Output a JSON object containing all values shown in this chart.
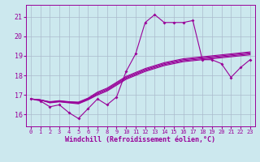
{
  "xlabel": "Windchill (Refroidissement éolien,°C)",
  "background_color": "#cce8ee",
  "grid_color": "#aabbcc",
  "line_color": "#990099",
  "x_ticks": [
    0,
    1,
    2,
    3,
    4,
    5,
    6,
    7,
    8,
    9,
    10,
    11,
    12,
    13,
    14,
    15,
    16,
    17,
    18,
    19,
    20,
    21,
    22,
    23
  ],
  "y_ticks": [
    16,
    17,
    18,
    19,
    20,
    21
  ],
  "ylim": [
    15.4,
    21.6
  ],
  "xlim": [
    -0.5,
    23.5
  ],
  "series_main": [
    16.8,
    16.7,
    16.4,
    16.5,
    16.1,
    15.8,
    16.3,
    16.8,
    16.5,
    16.9,
    18.2,
    19.1,
    20.7,
    21.1,
    20.7,
    20.7,
    20.7,
    20.8,
    18.8,
    18.8,
    18.6,
    17.9,
    18.4,
    18.8
  ],
  "series_parallel": [
    [
      16.8,
      16.75,
      16.6,
      16.65,
      16.6,
      16.55,
      16.75,
      17.0,
      17.2,
      17.5,
      17.8,
      18.0,
      18.2,
      18.35,
      18.5,
      18.6,
      18.7,
      18.75,
      18.8,
      18.85,
      18.9,
      18.95,
      19.0,
      19.05
    ],
    [
      16.8,
      16.75,
      16.62,
      16.67,
      16.62,
      16.58,
      16.78,
      17.05,
      17.25,
      17.55,
      17.85,
      18.05,
      18.25,
      18.4,
      18.55,
      18.65,
      18.75,
      18.8,
      18.85,
      18.9,
      18.95,
      19.0,
      19.05,
      19.1
    ],
    [
      16.8,
      16.75,
      16.64,
      16.69,
      16.64,
      16.61,
      16.81,
      17.1,
      17.3,
      17.6,
      17.9,
      18.1,
      18.3,
      18.45,
      18.6,
      18.7,
      18.8,
      18.85,
      18.9,
      18.95,
      19.0,
      19.05,
      19.1,
      19.15
    ],
    [
      16.8,
      16.75,
      16.66,
      16.71,
      16.66,
      16.64,
      16.84,
      17.15,
      17.35,
      17.65,
      17.95,
      18.15,
      18.35,
      18.5,
      18.65,
      18.75,
      18.85,
      18.9,
      18.95,
      19.0,
      19.05,
      19.1,
      19.15,
      19.2
    ]
  ]
}
